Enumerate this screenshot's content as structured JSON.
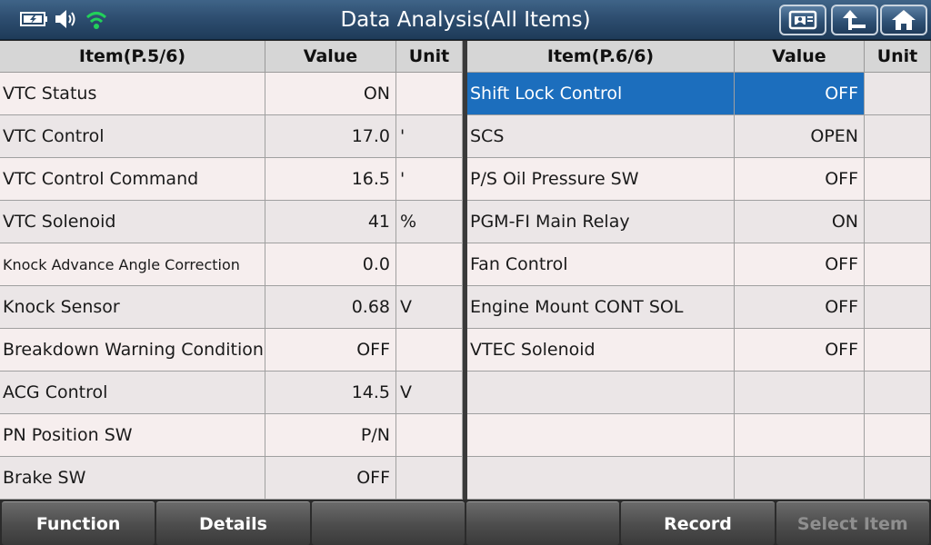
{
  "header": {
    "title": "Data Analysis(All Items)",
    "status_icons": [
      "battery-icon",
      "speaker-icon",
      "wifi-icon"
    ],
    "buttons": [
      "print-icon",
      "back-icon",
      "home-icon"
    ]
  },
  "left_table": {
    "headers": [
      "Item(P.5/6)",
      "Value",
      "Unit"
    ],
    "rows": [
      {
        "item": "VTC Status",
        "value": "ON",
        "unit": ""
      },
      {
        "item": "VTC Control",
        "value": "17.0",
        "unit": "'"
      },
      {
        "item": "VTC Control Command",
        "value": "16.5",
        "unit": "'"
      },
      {
        "item": "VTC Solenoid",
        "value": "41",
        "unit": "%"
      },
      {
        "item": "Knock Advance Angle Correction",
        "value": "0.0",
        "unit": ""
      },
      {
        "item": "Knock Sensor",
        "value": "0.68",
        "unit": "V"
      },
      {
        "item": "Breakdown Warning Condition",
        "value": "OFF",
        "unit": ""
      },
      {
        "item": "ACG Control",
        "value": "14.5",
        "unit": "V"
      },
      {
        "item": "PN Position SW",
        "value": "P/N",
        "unit": ""
      },
      {
        "item": "Brake SW",
        "value": "OFF",
        "unit": ""
      }
    ]
  },
  "right_table": {
    "headers": [
      "Item(P.6/6)",
      "Value",
      "Unit"
    ],
    "rows": [
      {
        "item": "Shift Lock Control",
        "value": "OFF",
        "unit": ""
      },
      {
        "item": "SCS",
        "value": "OPEN",
        "unit": ""
      },
      {
        "item": "P/S Oil Pressure SW",
        "value": "OFF",
        "unit": ""
      },
      {
        "item": "PGM-FI Main Relay",
        "value": "ON",
        "unit": ""
      },
      {
        "item": "Fan Control",
        "value": "OFF",
        "unit": ""
      },
      {
        "item": "Engine Mount CONT SOL",
        "value": "OFF",
        "unit": ""
      },
      {
        "item": "VTEC Solenoid",
        "value": "OFF",
        "unit": ""
      },
      {
        "item": "",
        "value": "",
        "unit": ""
      },
      {
        "item": "",
        "value": "",
        "unit": ""
      },
      {
        "item": "",
        "value": "",
        "unit": ""
      }
    ]
  },
  "footer": {
    "buttons": [
      "Function",
      "Details",
      "",
      "",
      "Record",
      "Select Item"
    ]
  },
  "colors": {
    "selected_row": "#1c6ebd",
    "title_bar": "#2e4e70"
  }
}
